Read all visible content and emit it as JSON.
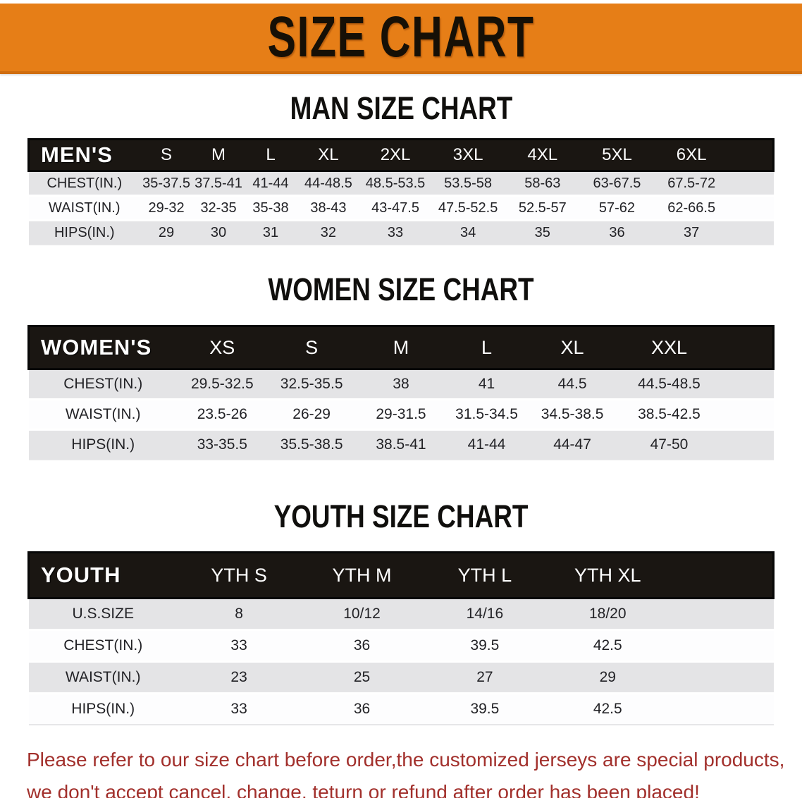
{
  "banner": {
    "title": "SIZE CHART"
  },
  "sections": [
    {
      "id": "men",
      "title": "MAN SIZE CHART",
      "header_label": "MEN'S",
      "columns": [
        "S",
        "M",
        "L",
        "XL",
        "2XL",
        "3XL",
        "4XL",
        "5XL",
        "6XL"
      ],
      "rows": [
        {
          "label": "CHEST(IN.)",
          "values": [
            "35-37.5",
            "37.5-41",
            "41-44",
            "44-48.5",
            "48.5-53.5",
            "53.5-58",
            "58-63",
            "63-67.5",
            "67.5-72"
          ]
        },
        {
          "label": "WAIST(IN.)",
          "values": [
            "29-32",
            "32-35",
            "35-38",
            "38-43",
            "43-47.5",
            "47.5-52.5",
            "52.5-57",
            "57-62",
            "62-66.5"
          ]
        },
        {
          "label": "HIPS(IN.)",
          "values": [
            "29",
            "30",
            "31",
            "32",
            "33",
            "34",
            "35",
            "36",
            "37"
          ]
        }
      ]
    },
    {
      "id": "women",
      "title": "WOMEN SIZE CHART",
      "header_label": "WOMEN'S",
      "columns": [
        "XS",
        "S",
        "M",
        "L",
        "XL",
        "XXL"
      ],
      "rows": [
        {
          "label": "CHEST(IN.)",
          "values": [
            "29.5-32.5",
            "32.5-35.5",
            "38",
            "41",
            "44.5",
            "44.5-48.5"
          ]
        },
        {
          "label": "WAIST(IN.)",
          "values": [
            "23.5-26",
            "26-29",
            "29-31.5",
            "31.5-34.5",
            "34.5-38.5",
            "38.5-42.5"
          ]
        },
        {
          "label": "HIPS(IN.)",
          "values": [
            "33-35.5",
            "35.5-38.5",
            "38.5-41",
            "41-44",
            "44-47",
            "47-50"
          ]
        }
      ]
    },
    {
      "id": "youth",
      "title": "YOUTH SIZE CHART",
      "header_label": "YOUTH",
      "columns": [
        "YTH S",
        "YTH M",
        "YTH L",
        "YTH XL"
      ],
      "rows": [
        {
          "label": "U.S.SIZE",
          "values": [
            "8",
            "10/12",
            "14/16",
            "18/20"
          ]
        },
        {
          "label": "CHEST(IN.)",
          "values": [
            "33",
            "36",
            "39.5",
            "42.5"
          ]
        },
        {
          "label": "WAIST(IN.)",
          "values": [
            "23",
            "25",
            "27",
            "29"
          ]
        },
        {
          "label": "HIPS(IN.)",
          "values": [
            "33",
            "36",
            "39.5",
            "42.5"
          ]
        }
      ]
    }
  ],
  "footer": {
    "line1": "Please refer to our size chart before order,the customized jerseys are special products,",
    "line2": "we don't accept cancel, change, teturn or refund after order has been placed!"
  },
  "colors": {
    "banner_bg": "#E67E17",
    "banner_text": "#161006",
    "header_bar_bg": "#1A1612",
    "header_bar_text": "#FFFFFF",
    "row_shade": "#E4E4E6",
    "row_white": "#FDFDFE",
    "title_text": "#100F0D",
    "data_text": "#222226",
    "disclaimer_text": "#A2302C"
  }
}
